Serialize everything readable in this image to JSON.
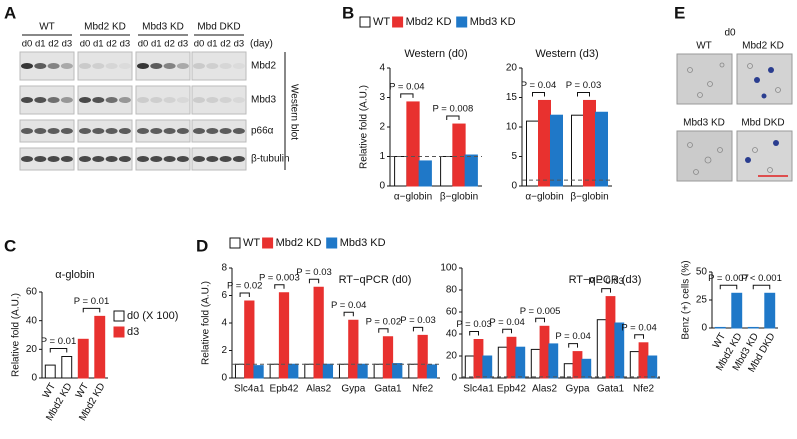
{
  "panels": [
    "A",
    "B",
    "C",
    "D",
    "E"
  ],
  "western_blot": {
    "groups": [
      "WT",
      "Mbd2 KD",
      "Mbd3 KD",
      "Mbd DKD"
    ],
    "days": [
      "d0",
      "d1",
      "d2",
      "d3"
    ],
    "day_unit": "(day)",
    "proteins": [
      "Mbd2",
      "Mbd3",
      "p66α",
      "β-tubulin"
    ],
    "label": "Western blot"
  },
  "micrographs": {
    "title": "d0",
    "labels": [
      "WT",
      "Mbd2 KD",
      "Mbd3 KD",
      "Mbd DKD"
    ]
  },
  "chart_data": [
    {
      "type": "bar",
      "title": "Western (d0)",
      "y_label": "Relative fold (A.U.)",
      "categories": [
        "α−globin",
        "β−globin"
      ],
      "series": [
        {
          "name": "WT",
          "color": "#ffffff",
          "values": [
            1,
            1
          ]
        },
        {
          "name": "Mbd2 KD",
          "color": "#e8312f",
          "values": [
            2.85,
            2.1
          ]
        },
        {
          "name": "Mbd3 KD",
          "color": "#1f78c8",
          "values": [
            0.85,
            1.05
          ]
        }
      ],
      "ylim": [
        0,
        4
      ],
      "yticks": [
        0,
        1,
        2,
        3,
        4
      ],
      "reference_line": 1,
      "legend": "top",
      "annotations": [
        "P = 0.04",
        "P = 0.008"
      ]
    },
    {
      "type": "bar",
      "title": "Western (d3)",
      "categories": [
        "α−globin",
        "β−globin"
      ],
      "series": [
        {
          "color": "#ffffff",
          "values": [
            11,
            12
          ]
        },
        {
          "color": "#e8312f",
          "values": [
            14.5,
            14.5
          ]
        },
        {
          "color": "#1f78c8",
          "values": [
            12,
            12.5
          ]
        }
      ],
      "ylim": [
        0,
        20
      ],
      "yticks": [
        0,
        5,
        10,
        15,
        20
      ],
      "reference_line": 1,
      "annotations": [
        "P = 0.04",
        "P = 0.03"
      ]
    },
    {
      "type": "bar",
      "title": "α-globin",
      "y_label": "Relative fold (A.U.)",
      "categories": [
        "WT",
        "Mbd2 KD",
        "WT",
        "Mbd2 KD"
      ],
      "grouped": false,
      "rotated_labels": true,
      "series": [
        {
          "name": "d0 (X 100)",
          "color": "#ffffff",
          "values": [
            9,
            15,
            null,
            null
          ]
        },
        {
          "name": "d3",
          "color": "#e8312f",
          "values": [
            null,
            null,
            27,
            43
          ]
        }
      ],
      "ylim": [
        0,
        60
      ],
      "yticks": [
        0,
        20,
        40,
        60
      ],
      "legend": "right",
      "annotations": [
        "P = 0.01",
        "P = 0.01"
      ]
    },
    {
      "type": "bar",
      "title": "RT−qPCR (d0)",
      "y_label": "Relative fold (A.U.)",
      "categories": [
        "Slc4a1",
        "Epb42",
        "Alas2",
        "Gypa",
        "Gata1",
        "Nfe2"
      ],
      "series": [
        {
          "name": "WT",
          "color": "#ffffff",
          "values": [
            1,
            1,
            1,
            1,
            1,
            1
          ]
        },
        {
          "name": "Mbd2 KD",
          "color": "#e8312f",
          "values": [
            5.6,
            6.2,
            6.6,
            4.2,
            3.0,
            3.1
          ]
        },
        {
          "name": "Mbd3 KD",
          "color": "#1f78c8",
          "values": [
            0.9,
            1.0,
            1.0,
            1.0,
            1.05,
            0.95
          ]
        }
      ],
      "ylim": [
        0,
        8
      ],
      "yticks": [
        0,
        2,
        4,
        6,
        8
      ],
      "reference_line": 1,
      "legend": "top",
      "annotations": [
        "P = 0.02",
        "P = 0.003",
        "P = 0.03",
        "P = 0.04",
        "P = 0.02",
        "P = 0.03"
      ]
    },
    {
      "type": "bar",
      "title": "RT−qPCR (d3)",
      "categories": [
        "Slc4a1",
        "Epb42",
        "Alas2",
        "Gypa",
        "Gata1",
        "Nfe2"
      ],
      "series": [
        {
          "color": "#ffffff",
          "values": [
            20,
            28,
            26,
            13,
            53,
            24
          ]
        },
        {
          "color": "#e8312f",
          "values": [
            35,
            37,
            47,
            24,
            74,
            32
          ]
        },
        {
          "color": "#1f78c8",
          "values": [
            20,
            28,
            31,
            17,
            50,
            20
          ]
        }
      ],
      "ylim": [
        0,
        100
      ],
      "yticks": [
        0,
        20,
        40,
        60,
        80,
        100
      ],
      "reference_line": 1,
      "annotations": [
        "P = 0.03",
        "P = 0.04",
        "P = 0.005",
        "P = 0.04",
        "P = 0.03",
        "P = 0.04"
      ]
    },
    {
      "type": "bar",
      "y_label": "Benz (+) cells (%)",
      "categories": [
        "WT",
        "Mbd2 KD",
        "Mbd3 KD",
        "Mbd DKD"
      ],
      "grouped": false,
      "rotated_labels": true,
      "series": [
        {
          "color": "#1f78c8",
          "values": [
            0.5,
            31,
            0.5,
            31
          ]
        }
      ],
      "ylim": [
        0,
        50
      ],
      "yticks": [
        0,
        25,
        50
      ],
      "annotations": [
        "P = 0.007",
        "P < 0.001"
      ]
    }
  ]
}
